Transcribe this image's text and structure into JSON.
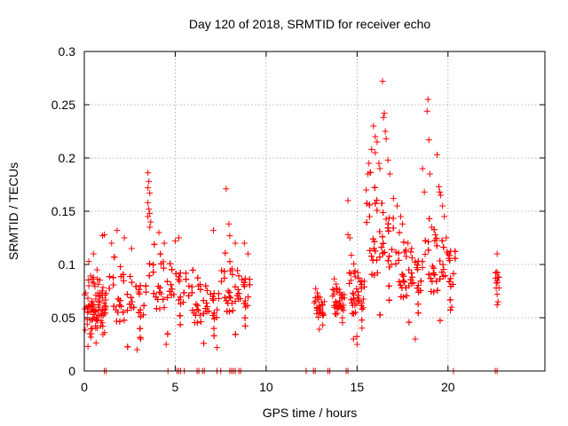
{
  "chart_data": {
    "type": "scatter",
    "title": "Day 120 of 2018, SRMTID for receiver echo",
    "xlabel": "GPS time / hours",
    "ylabel": "SRMTID / TECUs",
    "xlim": [
      0,
      25.33
    ],
    "ylim": [
      0,
      0.3
    ],
    "xticks": [
      0,
      5,
      10,
      15,
      20
    ],
    "xtick_labels": [
      "0",
      "5",
      "10",
      "15",
      "20"
    ],
    "yticks": [
      0,
      0.05,
      0.1,
      0.15,
      0.2,
      0.25,
      0.3
    ],
    "ytick_labels": [
      "0",
      "0.05",
      "0.1",
      "0.15",
      "0.2",
      "0.25",
      "0.3"
    ],
    "grid": true,
    "marker": "+",
    "series": [
      {
        "name": "SRMTID",
        "color": "#ff0000",
        "clusters": [
          {
            "x_range": [
              0.0,
              1.2
            ],
            "n": 95,
            "y_center": 0.062,
            "y_spread": 0.02
          },
          {
            "x_range": [
              1.2,
              3.4
            ],
            "n": 160,
            "y_center": 0.062,
            "y_spread": 0.022
          },
          {
            "x_range": [
              3.4,
              5.6
            ],
            "n": 150,
            "y_center": 0.074,
            "y_spread": 0.022
          },
          {
            "x_range": [
              5.6,
              7.4
            ],
            "n": 110,
            "y_center": 0.058,
            "y_spread": 0.018
          },
          {
            "x_range": [
              7.4,
              9.1
            ],
            "n": 110,
            "y_center": 0.07,
            "y_spread": 0.02
          },
          {
            "x_range": [
              12.6,
              13.2
            ],
            "n": 30,
            "y_center": 0.057,
            "y_spread": 0.01
          },
          {
            "x_range": [
              13.6,
              14.3
            ],
            "n": 40,
            "y_center": 0.062,
            "y_spread": 0.012
          },
          {
            "x_range": [
              14.5,
              15.4
            ],
            "n": 70,
            "y_center": 0.068,
            "y_spread": 0.02
          },
          {
            "x_range": [
              15.4,
              17.0
            ],
            "n": 160,
            "y_center": 0.115,
            "y_spread": 0.035
          },
          {
            "x_range": [
              17.0,
              18.6
            ],
            "n": 130,
            "y_center": 0.085,
            "y_spread": 0.022
          },
          {
            "x_range": [
              18.6,
              20.4
            ],
            "n": 140,
            "y_center": 0.092,
            "y_spread": 0.025
          },
          {
            "x_range": [
              22.6,
              22.8
            ],
            "n": 8,
            "y_center": 0.08,
            "y_spread": 0.01
          }
        ],
        "points": [
          [
            0.2,
            0.023
          ],
          [
            0.25,
            0.08
          ],
          [
            0.1,
            0.06
          ],
          [
            0.3,
            0.035
          ],
          [
            0.5,
            0.11
          ],
          [
            0.7,
            0.095
          ],
          [
            1.0,
            0.127
          ],
          [
            1.1,
            0.128
          ],
          [
            1.5,
            0.12
          ],
          [
            1.8,
            0.132
          ],
          [
            2.2,
            0.125
          ],
          [
            2.6,
            0.115
          ],
          [
            2.9,
            0.02
          ],
          [
            3.1,
            0.03
          ],
          [
            3.5,
            0.186
          ],
          [
            3.55,
            0.178
          ],
          [
            3.5,
            0.172
          ],
          [
            3.6,
            0.167
          ],
          [
            3.5,
            0.158
          ],
          [
            3.55,
            0.152
          ],
          [
            3.6,
            0.148
          ],
          [
            3.5,
            0.145
          ],
          [
            3.65,
            0.14
          ],
          [
            3.6,
            0.135
          ],
          [
            4.1,
            0.13
          ],
          [
            4.4,
            0.12
          ],
          [
            4.5,
            0.025
          ],
          [
            5.0,
            0.122
          ],
          [
            5.2,
            0.125
          ],
          [
            7.1,
            0.132
          ],
          [
            7.3,
            0.022
          ],
          [
            7.8,
            0.171
          ],
          [
            7.95,
            0.138
          ],
          [
            8.0,
            0.127
          ],
          [
            8.3,
            0.12
          ],
          [
            8.8,
            0.12
          ],
          [
            9.0,
            0.11
          ],
          [
            14.5,
            0.16
          ],
          [
            14.5,
            0.128
          ],
          [
            14.6,
            0.125
          ],
          [
            14.8,
            0.03
          ],
          [
            15.0,
            0.025
          ],
          [
            15.5,
            0.17
          ],
          [
            15.6,
            0.185
          ],
          [
            15.65,
            0.195
          ],
          [
            15.8,
            0.208
          ],
          [
            15.9,
            0.23
          ],
          [
            16.0,
            0.22
          ],
          [
            16.1,
            0.215
          ],
          [
            16.0,
            0.205
          ],
          [
            16.2,
            0.195
          ],
          [
            16.25,
            0.19
          ],
          [
            16.4,
            0.272
          ],
          [
            16.5,
            0.242
          ],
          [
            16.45,
            0.238
          ],
          [
            16.55,
            0.225
          ],
          [
            16.6,
            0.218
          ],
          [
            16.7,
            0.198
          ],
          [
            16.8,
            0.185
          ],
          [
            17.0,
            0.162
          ],
          [
            17.2,
            0.155
          ],
          [
            17.4,
            0.145
          ],
          [
            17.5,
            0.138
          ],
          [
            17.8,
            0.12
          ],
          [
            18.0,
            0.115
          ],
          [
            18.2,
            0.03
          ],
          [
            18.6,
            0.19
          ],
          [
            18.7,
            0.168
          ],
          [
            18.9,
            0.255
          ],
          [
            18.85,
            0.244
          ],
          [
            18.95,
            0.217
          ],
          [
            19.0,
            0.185
          ],
          [
            19.1,
            0.135
          ],
          [
            19.3,
            0.128
          ],
          [
            19.4,
            0.203
          ],
          [
            19.5,
            0.173
          ],
          [
            19.55,
            0.168
          ],
          [
            19.6,
            0.165
          ],
          [
            19.7,
            0.155
          ],
          [
            19.8,
            0.145
          ],
          [
            19.9,
            0.125
          ],
          [
            20.0,
            0.11
          ],
          [
            20.2,
            0.06
          ],
          [
            22.7,
            0.11
          ],
          [
            22.7,
            0.092
          ],
          [
            22.75,
            0.088
          ],
          [
            22.7,
            0.085
          ],
          [
            22.8,
            0.078
          ],
          [
            22.7,
            0.072
          ],
          [
            22.75,
            0.065
          ],
          [
            22.7,
            0.062
          ]
        ],
        "zero_points_x": [
          1.1,
          1.2,
          4.6,
          5.1,
          5.2,
          5.3,
          5.5,
          6.2,
          6.3,
          6.5,
          6.6,
          7.3,
          7.5,
          8.0,
          8.1,
          8.2,
          8.3,
          8.5,
          8.6,
          12.2,
          12.6,
          12.7,
          13.4,
          13.5,
          14.4,
          14.5,
          20.3,
          22.6,
          22.7
        ]
      }
    ]
  }
}
